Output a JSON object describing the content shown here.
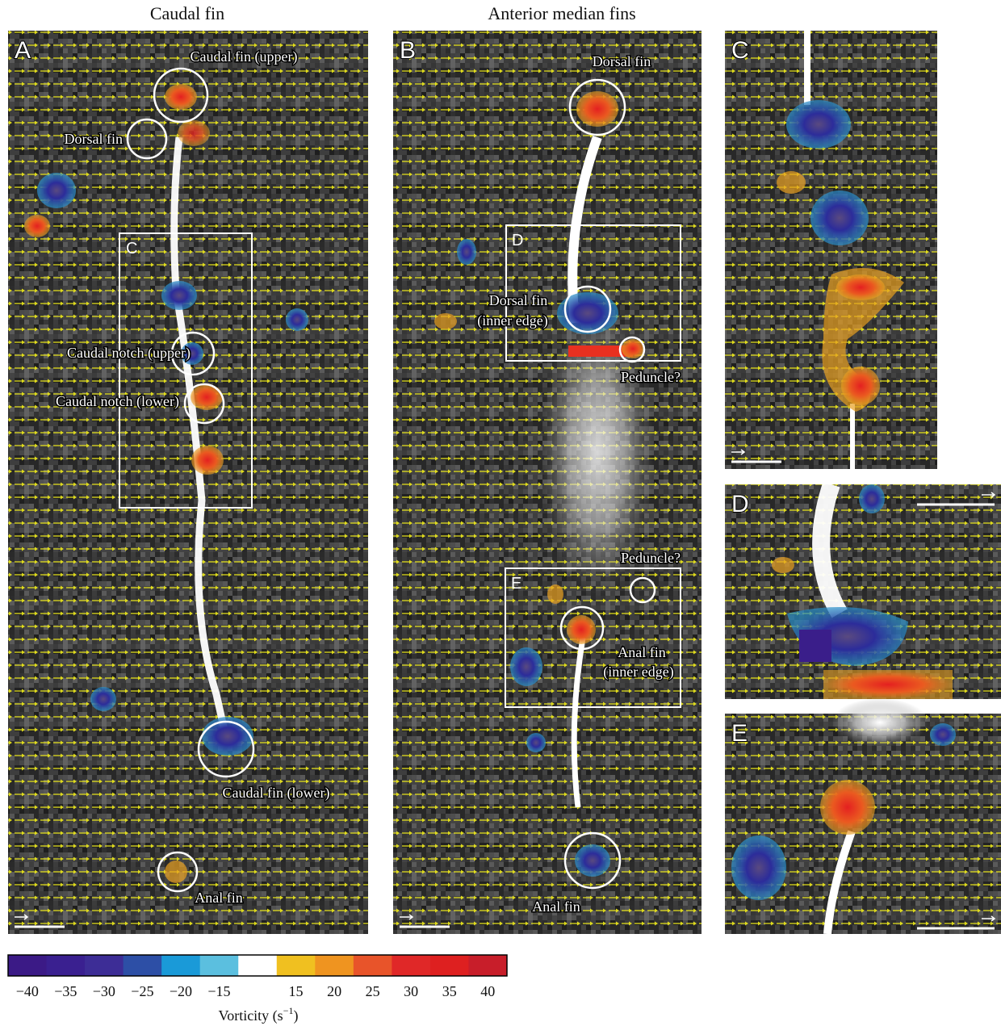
{
  "headers": [
    "Caudal fin",
    "Anterior median fins"
  ],
  "panels": [
    {
      "label": "A",
      "annotations": [
        "Caudal fin (upper)",
        "Dorsal fin",
        "C",
        "Caudal notch (upper)",
        "Caudal notch (lower)",
        "Caudal fin (lower)",
        "Anal fin"
      ]
    },
    {
      "label": "B",
      "annotations": [
        "Dorsal fin",
        "D",
        "Dorsal fin",
        "(inner edge)",
        "Peduncle?",
        "Peduncle?",
        "E",
        "Anal fin",
        "(inner edge)",
        "Anal fin"
      ]
    },
    {
      "label": "C"
    },
    {
      "label": "D"
    },
    {
      "label": "E"
    }
  ],
  "colorbar": {
    "ticks": [
      "−40",
      "−35",
      "−30",
      "−25",
      "−20",
      "−15",
      "15",
      "20",
      "25",
      "30",
      "35",
      "40"
    ],
    "colors": [
      "#3b1a86",
      "#3a2090",
      "#3d2d96",
      "#2d4fa6",
      "#1a9ad8",
      "#5bbfdf",
      "#ffffff",
      "#f0c020",
      "#ef9420",
      "#e8542a",
      "#e02828",
      "#de2020",
      "#c81e2a"
    ],
    "label": {
      "text": "Vorticity (s",
      "sup": "−1",
      "close": ")"
    }
  }
}
